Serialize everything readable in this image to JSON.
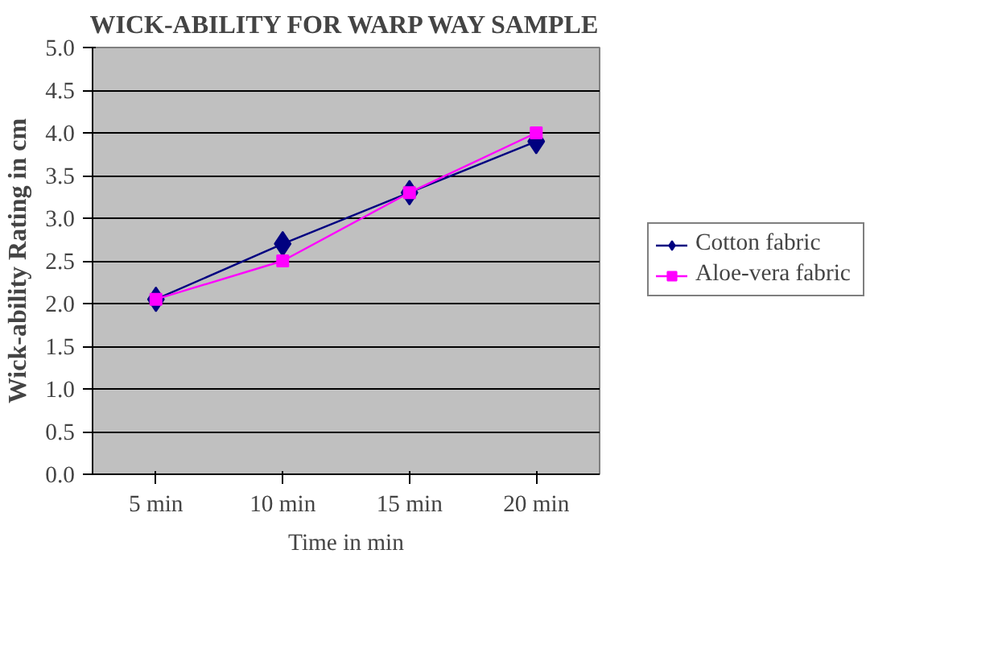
{
  "chart_data": {
    "type": "line",
    "title": "WICK-ABILITY FOR WARP WAY SAMPLE",
    "xlabel": "Time in min",
    "ylabel": "Wick-ability Rating in cm",
    "categories": [
      "5 min",
      "10 min",
      "15 min",
      "20 min"
    ],
    "series": [
      {
        "name": "Cotton fabric",
        "color": "#000080",
        "marker": "diamond",
        "values": [
          2.05,
          2.7,
          3.3,
          3.9
        ]
      },
      {
        "name": "Aloe-vera fabric",
        "color": "#ff00ff",
        "marker": "square",
        "values": [
          2.05,
          2.5,
          3.3,
          4.0
        ]
      }
    ],
    "ylim": [
      0,
      5
    ],
    "yticks": [
      {
        "value": 0,
        "label": "0.0"
      },
      0.5,
      {
        "value": 1,
        "label": "1.0"
      },
      1.5,
      {
        "value": 2,
        "label": "2.0"
      },
      2.5,
      {
        "value": 3,
        "label": "3.0"
      },
      3.5,
      {
        "value": 4,
        "label": "4.0"
      },
      4.5,
      {
        "value": 5,
        "label": "5.0"
      }
    ],
    "grid": "y",
    "legend": "right",
    "line_style": "solid"
  }
}
